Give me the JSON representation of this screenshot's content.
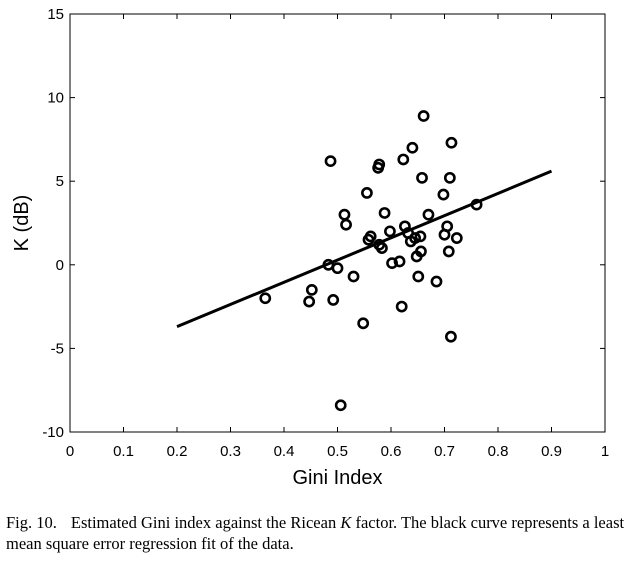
{
  "chart_data": {
    "type": "scatter",
    "xlabel": "Gini Index",
    "ylabel": "K (dB)",
    "xlim": [
      0,
      1
    ],
    "ylim": [
      -10,
      15
    ],
    "xticks": [
      "0",
      "0.1",
      "0.2",
      "0.3",
      "0.4",
      "0.5",
      "0.6",
      "0.7",
      "0.8",
      "0.9",
      "1"
    ],
    "yticks": [
      "15",
      "10",
      "5",
      "0",
      "-5",
      "-10"
    ],
    "grid": false,
    "marker": "open-circle",
    "points": [
      [
        0.365,
        -2.0
      ],
      [
        0.447,
        -2.2
      ],
      [
        0.452,
        -1.5
      ],
      [
        0.483,
        0.0
      ],
      [
        0.487,
        6.2
      ],
      [
        0.492,
        -2.1
      ],
      [
        0.5,
        -0.2
      ],
      [
        0.506,
        -8.4
      ],
      [
        0.513,
        3.0
      ],
      [
        0.516,
        2.4
      ],
      [
        0.53,
        -0.7
      ],
      [
        0.548,
        -3.5
      ],
      [
        0.555,
        4.3
      ],
      [
        0.558,
        1.5
      ],
      [
        0.562,
        1.7
      ],
      [
        0.576,
        5.8
      ],
      [
        0.578,
        6.0
      ],
      [
        0.578,
        1.2
      ],
      [
        0.583,
        1.0
      ],
      [
        0.588,
        3.1
      ],
      [
        0.598,
        2.0
      ],
      [
        0.602,
        0.1
      ],
      [
        0.616,
        0.2
      ],
      [
        0.62,
        -2.5
      ],
      [
        0.623,
        6.3
      ],
      [
        0.626,
        2.3
      ],
      [
        0.632,
        1.9
      ],
      [
        0.637,
        1.4
      ],
      [
        0.64,
        7.0
      ],
      [
        0.645,
        1.6
      ],
      [
        0.648,
        0.5
      ],
      [
        0.651,
        -0.7
      ],
      [
        0.655,
        1.7
      ],
      [
        0.656,
        0.8
      ],
      [
        0.658,
        5.2
      ],
      [
        0.661,
        8.9
      ],
      [
        0.67,
        3.0
      ],
      [
        0.685,
        -1.0
      ],
      [
        0.698,
        4.2
      ],
      [
        0.7,
        1.8
      ],
      [
        0.705,
        2.3
      ],
      [
        0.708,
        0.8
      ],
      [
        0.71,
        5.2
      ],
      [
        0.712,
        -4.3
      ],
      [
        0.713,
        7.3
      ],
      [
        0.723,
        1.6
      ],
      [
        0.76,
        3.6
      ]
    ],
    "fit_line": {
      "x": [
        0.2,
        0.9
      ],
      "y": [
        -3.7,
        5.6
      ]
    },
    "colors": {
      "marker": "#000000",
      "line": "#000000",
      "axes": "#000000"
    }
  },
  "caption": {
    "label": "Fig. 10.",
    "text_before": "Estimated Gini index against the Ricean ",
    "italic": "K",
    "text_after": " factor. The black curve represents a least mean square error regression fit of the data."
  }
}
